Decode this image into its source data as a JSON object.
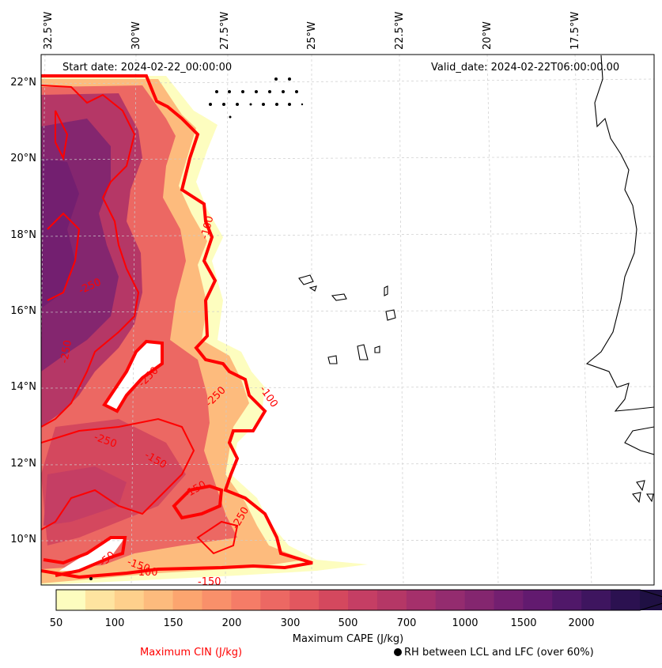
{
  "header": {
    "start_date": "Start date: 2024-02-22_00:00:00",
    "valid_date": "Valid_date: 2024-02-22T06:00:00.00"
  },
  "axes": {
    "lon_labels": [
      "32.5°W",
      "30°W",
      "27.5°W",
      "25°W",
      "22.5°W",
      "20°W",
      "17.5°W"
    ],
    "lat_labels": [
      "22°N",
      "20°N",
      "18°N",
      "16°N",
      "14°N",
      "12°N",
      "10°N"
    ]
  },
  "colorbar": {
    "ticks": [
      "50",
      "100",
      "150",
      "200",
      "300",
      "500",
      "700",
      "1000",
      "1500",
      "2000"
    ],
    "title": "Maximum CAPE (J/kg)",
    "colors": [
      "#fdfdbf",
      "#fee4a0",
      "#fed08c",
      "#fdbb7d",
      "#fca56f",
      "#f9906a",
      "#f57c67",
      "#ec6863",
      "#e2575f",
      "#d4485e",
      "#c53e64",
      "#b53766",
      "#a5306b",
      "#942c6f",
      "#84266f",
      "#731f70",
      "#621a6f",
      "#501869",
      "#3e155f",
      "#2b1150",
      "#1f1043"
    ]
  },
  "legend": {
    "cin_label": "Maximum CIN (J/kg)",
    "rh_label": "RH between LCL and LFC (over 60%)"
  },
  "contour_labels": [
    {
      "text": "-250"
    },
    {
      "text": "-250"
    },
    {
      "text": "-250"
    },
    {
      "text": "-250"
    },
    {
      "text": "-150"
    },
    {
      "text": "-100"
    },
    {
      "text": "-100"
    },
    {
      "text": "-50"
    },
    {
      "text": "-250"
    },
    {
      "text": "-150"
    },
    {
      "text": "-150"
    },
    {
      "text": "-100"
    },
    {
      "text": "-150"
    },
    {
      "text": "-250"
    }
  ],
  "colors": {
    "cin_contour": "#ff0000",
    "coastline": "#000000",
    "gridline": "#cccccc"
  }
}
